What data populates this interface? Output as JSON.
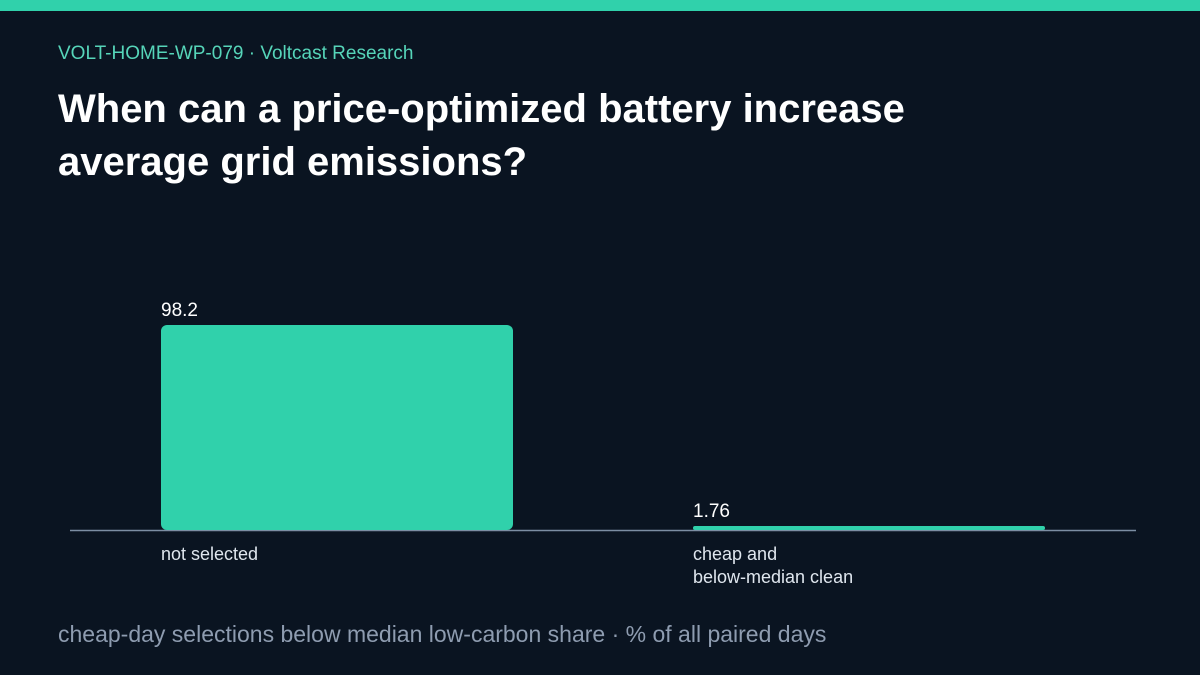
{
  "header": {
    "kicker": "VOLT-HOME-WP-079 · Voltcast Research",
    "title": "When can a price-optimized battery increase average grid emissions?"
  },
  "footer": {
    "caption": "cheap-day selections below median low-carbon share · % of all paired days"
  },
  "colors": {
    "accent": "#30d1ab",
    "background": "#0a1421",
    "axis": "#7c8ea3",
    "text": "#ffffff",
    "muted": "#8e9cb0"
  },
  "chart_data": {
    "type": "bar",
    "categories": [
      [
        "not selected"
      ],
      [
        "cheap and",
        "below-median clean"
      ]
    ],
    "values": [
      98.2,
      1.76
    ],
    "value_labels": [
      "98.2",
      "1.76"
    ],
    "ylim": [
      0,
      98.2
    ],
    "grid": false,
    "legend": "none"
  }
}
